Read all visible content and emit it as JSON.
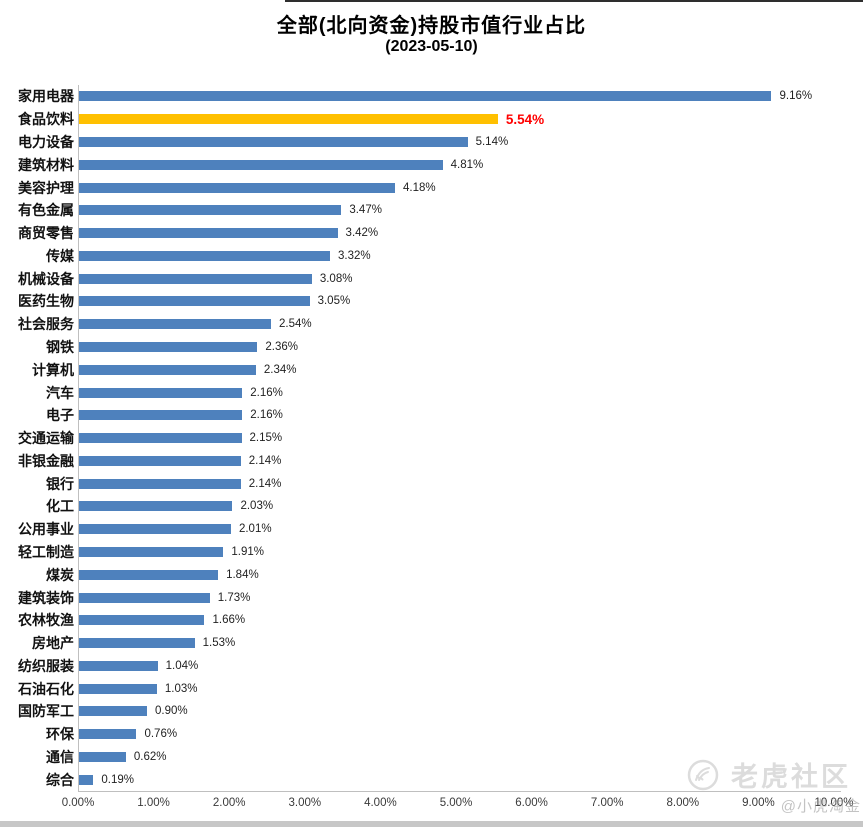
{
  "chart_data": {
    "type": "bar",
    "orientation": "horizontal",
    "title": "全部(北向资金)持股市值行业占比",
    "subtitle": "(2023-05-10)",
    "xlabel": "",
    "ylabel": "",
    "xlim": [
      0,
      10
    ],
    "grid": false,
    "legend": "none",
    "bar_color": "#4E81BD",
    "axis_line_color": "#BFBFBF",
    "highlight": {
      "index": 1,
      "bar_color": "#FFC000",
      "label_color": "#FF0000"
    },
    "x_tick_labels": [
      "0.00%",
      "1.00%",
      "2.00%",
      "3.00%",
      "4.00%",
      "5.00%",
      "6.00%",
      "7.00%",
      "8.00%",
      "9.00%",
      "10.00%"
    ],
    "categories": [
      "家用电器",
      "食品饮料",
      "电力设备",
      "建筑材料",
      "美容护理",
      "有色金属",
      "商贸零售",
      "传媒",
      "机械设备",
      "医药生物",
      "社会服务",
      "钢铁",
      "计算机",
      "汽车",
      "电子",
      "交通运输",
      "非银金融",
      "银行",
      "化工",
      "公用事业",
      "轻工制造",
      "煤炭",
      "建筑装饰",
      "农林牧渔",
      "房地产",
      "纺织服装",
      "石油石化",
      "国防军工",
      "环保",
      "通信",
      "综合"
    ],
    "values": [
      9.16,
      5.54,
      5.14,
      4.81,
      4.18,
      3.47,
      3.42,
      3.32,
      3.08,
      3.05,
      2.54,
      2.36,
      2.34,
      2.16,
      2.16,
      2.15,
      2.14,
      2.14,
      2.03,
      2.01,
      1.91,
      1.84,
      1.73,
      1.66,
      1.53,
      1.04,
      1.03,
      0.9,
      0.76,
      0.62,
      0.19
    ],
    "value_labels": [
      "9.16%",
      "5.54%",
      "5.14%",
      "4.81%",
      "4.18%",
      "3.47%",
      "3.42%",
      "3.32%",
      "3.08%",
      "3.05%",
      "2.54%",
      "2.36%",
      "2.34%",
      "2.16%",
      "2.16%",
      "2.15%",
      "2.14%",
      "2.14%",
      "2.03%",
      "2.01%",
      "1.91%",
      "1.84%",
      "1.73%",
      "1.66%",
      "1.53%",
      "1.04%",
      "1.03%",
      "0.90%",
      "0.76%",
      "0.62%",
      "0.19%"
    ]
  },
  "watermark": {
    "brand": "老虎社区",
    "user": "@小虎淘金",
    "logo": "tiger-logo-icon"
  }
}
